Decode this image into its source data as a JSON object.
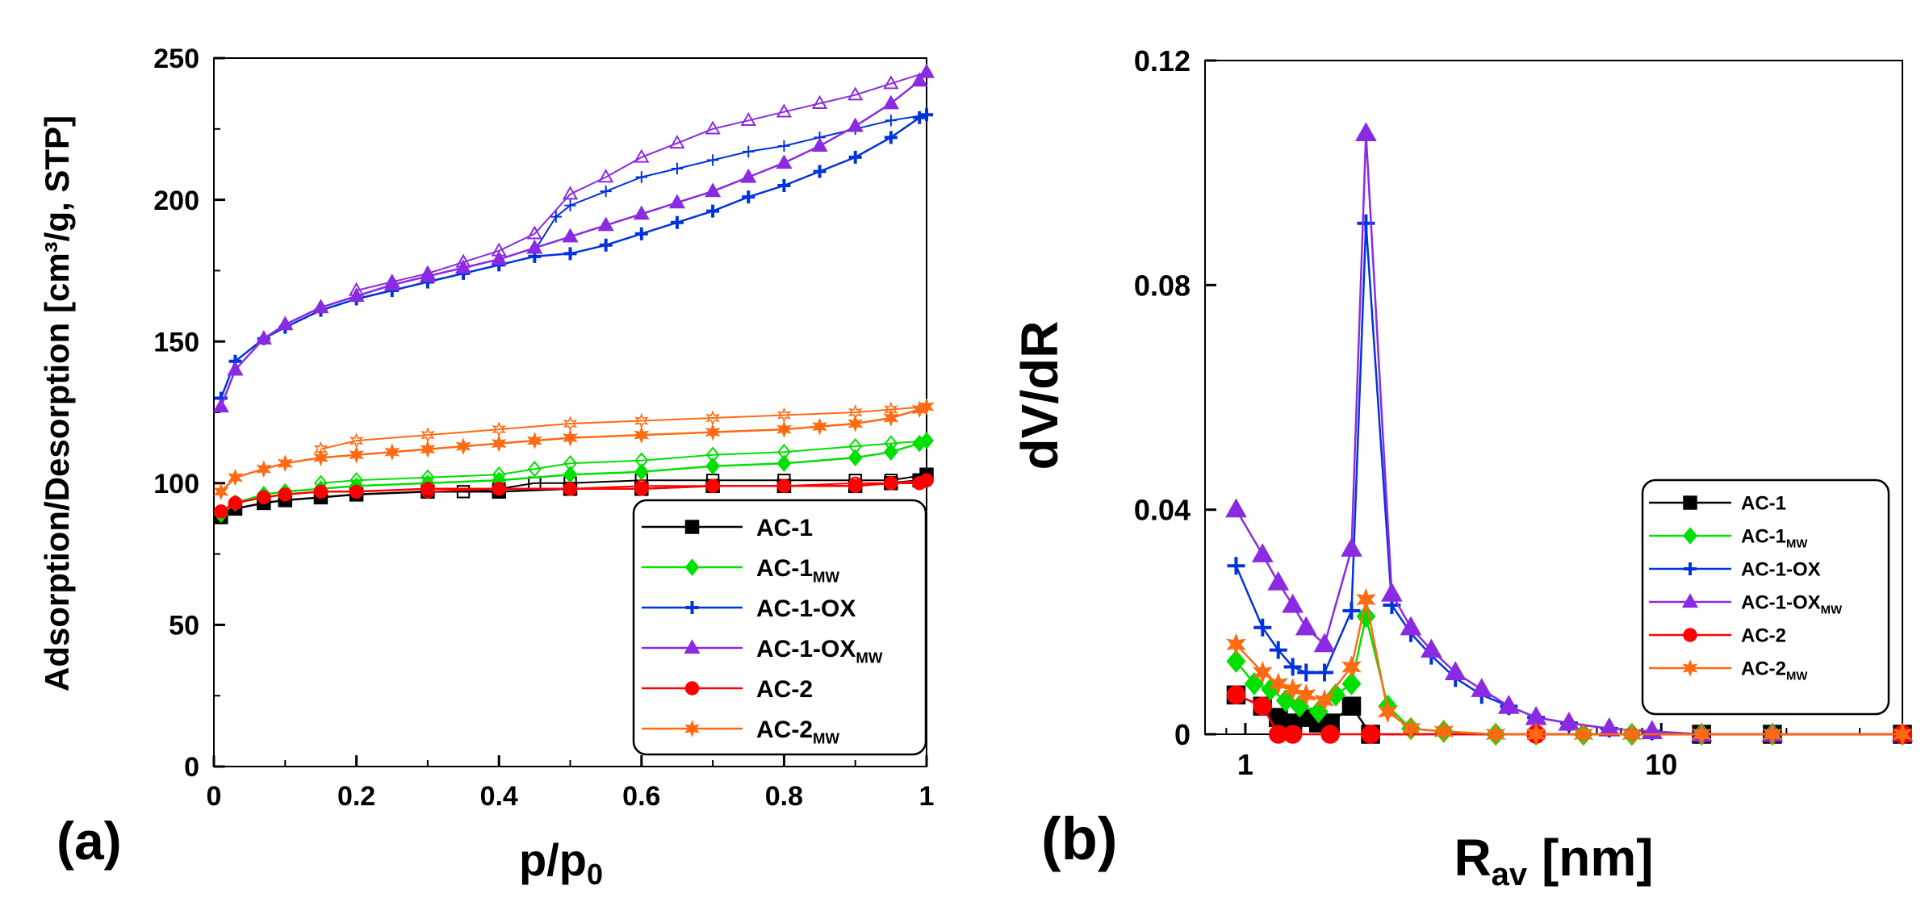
{
  "chart_data": [
    {
      "type": "line",
      "panel_label": "(a)",
      "xlabel": "p/p",
      "xlabel_sub": "0",
      "ylabel": "Adsorption/Desorption  [cm³/g, STP]",
      "xlim": [
        0,
        1
      ],
      "ylim": [
        0,
        250
      ],
      "xticks": [
        0,
        0.2,
        0.4,
        0.6,
        0.8,
        1
      ],
      "xtick_labels": [
        "0",
        "0.2",
        "0.4",
        "0.6",
        "0.8",
        "1"
      ],
      "yticks": [
        0,
        50,
        100,
        150,
        200,
        250
      ],
      "ytick_labels": [
        "0",
        "50",
        "100",
        "150",
        "200",
        "250"
      ],
      "legend_position": "bottom-right",
      "series": [
        {
          "name": "AC-1",
          "sub": "",
          "color": "#000000",
          "marker": "square",
          "x": [
            0.01,
            0.03,
            0.07,
            0.1,
            0.15,
            0.2,
            0.3,
            0.4,
            0.5,
            0.6,
            0.7,
            0.8,
            0.9,
            0.95,
            0.99,
            1.0
          ],
          "y": [
            88,
            91,
            93,
            94,
            95,
            96,
            97,
            97,
            98,
            98,
            99,
            99,
            99,
            100,
            101,
            103
          ],
          "desorption": {
            "x": [
              1.0,
              0.95,
              0.9,
              0.8,
              0.7,
              0.6,
              0.5,
              0.45,
              0.4,
              0.35
            ],
            "y": [
              103,
              101,
              101,
              101,
              101,
              101,
              100,
              100,
              98,
              97
            ]
          }
        },
        {
          "name": "AC-1",
          "sub": "MW",
          "color": "#00e000",
          "marker": "diamond",
          "x": [
            0.01,
            0.03,
            0.07,
            0.1,
            0.15,
            0.2,
            0.3,
            0.4,
            0.5,
            0.6,
            0.7,
            0.8,
            0.9,
            0.95,
            0.99,
            1.0
          ],
          "y": [
            89,
            93,
            96,
            97,
            98,
            99,
            100,
            101,
            103,
            104,
            106,
            107,
            109,
            111,
            114,
            115
          ],
          "desorption": {
            "x": [
              1.0,
              0.95,
              0.9,
              0.8,
              0.7,
              0.6,
              0.5,
              0.45,
              0.4,
              0.3,
              0.2,
              0.15
            ],
            "y": [
              115,
              114,
              113,
              111,
              110,
              108,
              107,
              105,
              103,
              102,
              101,
              100
            ]
          }
        },
        {
          "name": "AC-1-OX",
          "sub": "",
          "color": "#0033dd",
          "marker": "plus",
          "x": [
            0.01,
            0.03,
            0.07,
            0.1,
            0.15,
            0.2,
            0.25,
            0.3,
            0.35,
            0.4,
            0.45,
            0.5,
            0.55,
            0.6,
            0.65,
            0.7,
            0.75,
            0.8,
            0.85,
            0.9,
            0.95,
            0.99,
            1.0
          ],
          "y": [
            130,
            143,
            151,
            155,
            161,
            165,
            168,
            171,
            174,
            177,
            180,
            181,
            184,
            188,
            192,
            196,
            201,
            205,
            210,
            215,
            222,
            229,
            230
          ],
          "desorption": {
            "x": [
              1.0,
              0.95,
              0.9,
              0.85,
              0.8,
              0.75,
              0.7,
              0.65,
              0.6,
              0.55,
              0.5,
              0.48,
              0.45
            ],
            "y": [
              230,
              228,
              225,
              222,
              219,
              217,
              214,
              211,
              208,
              203,
              198,
              194,
              182
            ]
          }
        },
        {
          "name": "AC-1-OX",
          "sub": "MW",
          "color": "#8a2be2",
          "marker": "triangle",
          "x": [
            0.01,
            0.03,
            0.07,
            0.1,
            0.15,
            0.2,
            0.25,
            0.3,
            0.35,
            0.4,
            0.45,
            0.5,
            0.55,
            0.6,
            0.65,
            0.7,
            0.75,
            0.8,
            0.85,
            0.9,
            0.95,
            0.99,
            1.0
          ],
          "y": [
            127,
            140,
            151,
            156,
            162,
            166,
            170,
            173,
            176,
            179,
            183,
            187,
            191,
            195,
            199,
            203,
            208,
            213,
            219,
            226,
            234,
            242,
            245
          ],
          "desorption": {
            "x": [
              1.0,
              0.95,
              0.9,
              0.85,
              0.8,
              0.75,
              0.7,
              0.65,
              0.6,
              0.55,
              0.5,
              0.45,
              0.4,
              0.35,
              0.3,
              0.25,
              0.2
            ],
            "y": [
              245,
              241,
              237,
              234,
              231,
              228,
              225,
              220,
              215,
              208,
              202,
              188,
              182,
              178,
              174,
              171,
              168
            ]
          }
        },
        {
          "name": "AC-2",
          "sub": "",
          "color": "#ff0000",
          "marker": "circle",
          "x": [
            0.01,
            0.03,
            0.07,
            0.1,
            0.15,
            0.2,
            0.3,
            0.4,
            0.5,
            0.6,
            0.7,
            0.8,
            0.9,
            0.95,
            0.99,
            1.0
          ],
          "y": [
            90,
            93,
            95,
            96,
            97,
            97,
            98,
            98,
            98,
            98,
            99,
            99,
            99,
            100,
            100,
            101
          ],
          "desorption": {
            "x": [
              1.0,
              0.95,
              0.9,
              0.8,
              0.7,
              0.6,
              0.5,
              0.4,
              0.3
            ],
            "y": [
              101,
              100,
              100,
              99,
              99,
              99,
              98,
              98,
              97
            ]
          }
        },
        {
          "name": "AC-2",
          "sub": "MW",
          "color": "#ff6a13",
          "marker": "star",
          "x": [
            0.01,
            0.03,
            0.07,
            0.1,
            0.15,
            0.2,
            0.25,
            0.3,
            0.35,
            0.4,
            0.45,
            0.5,
            0.6,
            0.7,
            0.8,
            0.85,
            0.9,
            0.95,
            0.99,
            1.0
          ],
          "y": [
            97,
            102,
            105,
            107,
            109,
            110,
            111,
            112,
            113,
            114,
            115,
            116,
            117,
            118,
            119,
            120,
            121,
            123,
            126,
            127
          ],
          "desorption": {
            "x": [
              1.0,
              0.95,
              0.9,
              0.8,
              0.7,
              0.6,
              0.5,
              0.4,
              0.3,
              0.2,
              0.15
            ],
            "y": [
              127,
              126,
              125,
              124,
              123,
              122,
              121,
              119,
              117,
              115,
              112
            ]
          }
        }
      ]
    },
    {
      "type": "line",
      "panel_label": "(b)",
      "xlabel": "R",
      "xlabel_sub": "av",
      "xlabel_suffix": " [nm]",
      "ylabel": "dV/dR",
      "xscale": "log",
      "xlim": [
        0.8,
        38
      ],
      "ylim": [
        0,
        0.12
      ],
      "xticks": [
        1,
        10
      ],
      "xtick_labels": [
        "1",
        "10"
      ],
      "yticks": [
        0,
        0.04,
        0.08,
        0.12
      ],
      "ytick_labels": [
        "0",
        "0.04",
        "0.08",
        "0.12"
      ],
      "legend_position": "right",
      "series": [
        {
          "name": "AC-1",
          "sub": "",
          "color": "#000000",
          "marker": "square",
          "x": [
            0.95,
            1.1,
            1.2,
            1.3,
            1.4,
            1.5,
            1.6,
            1.8,
            2.0,
            12.5,
            18.5,
            38
          ],
          "y": [
            0.007,
            0.005,
            0.003,
            0.002,
            0.003,
            0.002,
            0.002,
            0.005,
            0.0,
            0.0,
            0.0,
            0.0
          ]
        },
        {
          "name": "AC-1",
          "sub": "MW",
          "color": "#00e000",
          "marker": "diamond",
          "x": [
            0.95,
            1.05,
            1.15,
            1.25,
            1.35,
            1.5,
            1.65,
            1.8,
            1.95,
            2.2,
            2.5,
            3.0,
            4.0,
            5.0,
            6.5,
            8.5,
            12.5,
            18.5,
            38
          ],
          "y": [
            0.013,
            0.009,
            0.008,
            0.006,
            0.005,
            0.004,
            0.007,
            0.009,
            0.021,
            0.005,
            0.001,
            0.0005,
            0.0,
            0.0,
            0.0,
            0.0,
            0.0,
            0.0,
            0.0
          ]
        },
        {
          "name": "AC-1-OX",
          "sub": "",
          "color": "#0033dd",
          "marker": "plus",
          "x": [
            0.95,
            1.1,
            1.2,
            1.3,
            1.4,
            1.55,
            1.8,
            1.95,
            2.25,
            2.5,
            2.8,
            3.2,
            3.7,
            4.3,
            5.0,
            6.0,
            7.5,
            9.5,
            12.5,
            18.5,
            38
          ],
          "y": [
            0.03,
            0.019,
            0.015,
            0.012,
            0.011,
            0.011,
            0.022,
            0.091,
            0.023,
            0.018,
            0.014,
            0.01,
            0.007,
            0.005,
            0.003,
            0.002,
            0.001,
            0.0005,
            0.0,
            0.0,
            0.0
          ]
        },
        {
          "name": "AC-1-OX",
          "sub": "MW",
          "color": "#8a2be2",
          "marker": "triangle",
          "x": [
            0.95,
            1.1,
            1.2,
            1.3,
            1.4,
            1.55,
            1.8,
            1.95,
            2.25,
            2.5,
            2.8,
            3.2,
            3.7,
            4.3,
            5.0,
            6.0,
            7.5,
            9.5,
            12.5,
            18.5,
            38
          ],
          "y": [
            0.04,
            0.032,
            0.027,
            0.023,
            0.019,
            0.016,
            0.033,
            0.107,
            0.025,
            0.019,
            0.015,
            0.011,
            0.008,
            0.005,
            0.003,
            0.002,
            0.001,
            0.0005,
            0.0,
            0.0,
            0.0
          ]
        },
        {
          "name": "AC-2",
          "sub": "",
          "color": "#ff0000",
          "marker": "circle",
          "x": [
            0.95,
            1.1,
            1.2,
            1.3,
            1.6,
            2.0,
            5.0,
            38
          ],
          "y": [
            0.007,
            0.005,
            0.0,
            0.0,
            0.0,
            0.0,
            0.0,
            0.0
          ]
        },
        {
          "name": "AC-2",
          "sub": "MW",
          "color": "#ff6a13",
          "marker": "star",
          "x": [
            0.95,
            1.1,
            1.2,
            1.3,
            1.4,
            1.55,
            1.8,
            1.95,
            2.2,
            2.5,
            3.0,
            4.0,
            5.0,
            6.5,
            8.5,
            12.5,
            18.5,
            38
          ],
          "y": [
            0.016,
            0.011,
            0.009,
            0.008,
            0.007,
            0.006,
            0.012,
            0.024,
            0.004,
            0.001,
            0.0005,
            0.0,
            0.0,
            0.0,
            0.0,
            0.0,
            0.0,
            0.0
          ]
        }
      ]
    }
  ]
}
